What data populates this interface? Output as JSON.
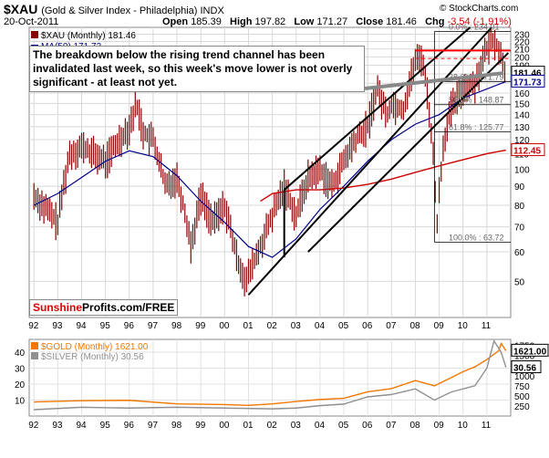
{
  "header": {
    "symbol": "$XAU",
    "name": "(Gold & Silver Index - Philadelphia) INDX",
    "date": "20-Oct-2011",
    "open_label": "Open",
    "open": "185.39",
    "high_label": "High",
    "high": "197.82",
    "low_label": "Low",
    "low": "171.27",
    "close_label": "Close",
    "close": "181.46",
    "chg_label": "Chg",
    "chg": "-3.54 (-1.91%)",
    "copyright": "© StockCharts.com"
  },
  "legend": {
    "xau": "$XAU (Monthly) 181.46",
    "ma": "MA(50) 171.73"
  },
  "callout": "The breakdown below the rising trend channel has been invalidated last week, so this week's move lower is not overly significant - at least not yet.",
  "brand": {
    "red": "Sunshine",
    "black": "Profits.com/FREE"
  },
  "fib_labels": [
    {
      "text": "0.0% : 234.01",
      "value": 234
    },
    {
      "text": "38.2% : 171.79",
      "value": 171.8
    },
    {
      "text": "50.0% : 148.87",
      "value": 148.9
    },
    {
      "text": "61.8% : 125.77",
      "value": 125.8
    },
    {
      "text": "100.0% : 63.72",
      "value": 63.72
    }
  ],
  "price_tags": [
    {
      "text": "181.46",
      "value": 181.46,
      "color": "#000000"
    },
    {
      "text": "171.73",
      "value": 171.73,
      "color": "#00008b"
    },
    {
      "text": "112.45",
      "value": 112.45,
      "color": "#cc0000"
    }
  ],
  "lower_legend": {
    "gold": "$GOLD (Monthly) 1621.00",
    "silver": "$SILVER (Monthly) 30.56"
  },
  "lower_tags": [
    {
      "text": "1621.00",
      "value": 1621
    },
    {
      "text": "30.56",
      "value": 30.56
    }
  ],
  "colors": {
    "xau_bar": "#8b0000",
    "ma50": "#00008b",
    "ma_long": "#cc0000",
    "gold": "#f07800",
    "silver": "#909090",
    "hline": "#ff0000"
  },
  "chart_data": [
    {
      "type": "line",
      "title": "$XAU (Gold & Silver Index - Philadelphia) INDX",
      "x_ticks": [
        "92",
        "93",
        "94",
        "95",
        "96",
        "97",
        "98",
        "99",
        "00",
        "01",
        "02",
        "03",
        "04",
        "05",
        "06",
        "07",
        "08",
        "09",
        "10",
        "11"
      ],
      "y_ticks": [
        50,
        60,
        70,
        80,
        90,
        100,
        110,
        120,
        130,
        140,
        150,
        160,
        170,
        180,
        190,
        200,
        210,
        220,
        230
      ],
      "y_scale": "log",
      "ylim": [
        40,
        240
      ],
      "series": [
        {
          "name": "$XAU (Monthly)",
          "x": [
            1992.0,
            1993.0,
            1993.5,
            1994.0,
            1995.0,
            1995.5,
            1996.0,
            1996.3,
            1996.6,
            1997.0,
            1997.5,
            1998.0,
            1998.6,
            1999.0,
            1999.5,
            2000.0,
            2000.5,
            2000.9,
            2001.5,
            2002.0,
            2002.5,
            2003.0,
            2003.5,
            2004.0,
            2004.5,
            2005.0,
            2005.5,
            2006.0,
            2006.4,
            2006.8,
            2007.0,
            2007.5,
            2008.0,
            2008.3,
            2008.7,
            2008.9,
            2009.2,
            2009.5,
            2010.0,
            2010.5,
            2011.0,
            2011.3,
            2011.6,
            2011.8
          ],
          "y": [
            85,
            72,
            110,
            115,
            105,
            118,
            130,
            150,
            125,
            120,
            90,
            95,
            62,
            85,
            72,
            80,
            58,
            50,
            62,
            75,
            90,
            75,
            95,
            100,
            90,
            105,
            120,
            130,
            165,
            140,
            150,
            145,
            195,
            200,
            120,
            70,
            120,
            145,
            165,
            170,
            210,
            225,
            200,
            181
          ]
        },
        {
          "name": "MA(50)",
          "x": [
            1992,
            1993,
            1994,
            1995,
            1996,
            1997,
            1998,
            1999,
            2000,
            2001,
            2002,
            2003,
            2004,
            2005,
            2006,
            2007,
            2008,
            2009,
            2010,
            2011.8
          ],
          "y": [
            80,
            86,
            95,
            105,
            112,
            108,
            96,
            82,
            72,
            62,
            58,
            65,
            78,
            90,
            105,
            120,
            132,
            140,
            155,
            171.73
          ]
        },
        {
          "name": "long MA",
          "x": [
            2001.5,
            2002,
            2003,
            2004,
            2005,
            2006,
            2007,
            2008,
            2009,
            2010,
            2011,
            2011.8
          ],
          "y": [
            82,
            86,
            88,
            88,
            89,
            91,
            94,
            98,
            102,
            106,
            110,
            112.45
          ]
        }
      ],
      "annotations": [
        "0.0% : 234.01",
        "38.2% : 171.79",
        "50.0% : 148.87",
        "61.8% : 125.77",
        "100.0% : 63.72",
        "181.46",
        "171.73",
        "112.45"
      ]
    },
    {
      "type": "line",
      "title": "$GOLD (Monthly) / $SILVER (Monthly)",
      "x_ticks": [
        "92",
        "93",
        "94",
        "95",
        "96",
        "97",
        "98",
        "99",
        "00",
        "01",
        "02",
        "03",
        "04",
        "05",
        "06",
        "07",
        "08",
        "09",
        "10",
        "11"
      ],
      "y_ticks_left": [
        10,
        20,
        30,
        40
      ],
      "y_ticks_right": [
        250,
        500,
        750,
        1000,
        1250,
        1500,
        1750
      ],
      "series": [
        {
          "name": "$GOLD (Monthly)",
          "axis": "right",
          "x": [
            1992,
            1994,
            1996,
            1998,
            2000,
            2001,
            2002,
            2003,
            2004,
            2005,
            2006,
            2007,
            2008,
            2008.8,
            2009.5,
            2010,
            2010.5,
            2011,
            2011.5,
            2011.6,
            2011.8
          ],
          "y": [
            350,
            380,
            390,
            300,
            285,
            265,
            300,
            360,
            410,
            440,
            600,
            680,
            880,
            750,
            950,
            1100,
            1220,
            1400,
            1620,
            1800,
            1621
          ]
        },
        {
          "name": "$SILVER (Monthly)",
          "axis": "left",
          "x": [
            1992,
            1994,
            1996,
            1998,
            2000,
            2002,
            2003,
            2004,
            2005,
            2006,
            2007,
            2008,
            2008.8,
            2009.5,
            2010,
            2010.5,
            2011,
            2011.3,
            2011.6,
            2011.8
          ],
          "y": [
            4,
            5.5,
            5,
            5.5,
            5,
            4.5,
            5,
            6.5,
            7.5,
            12,
            13.5,
            17,
            10,
            15,
            17,
            19,
            30,
            47,
            40,
            30.56
          ]
        }
      ]
    }
  ]
}
